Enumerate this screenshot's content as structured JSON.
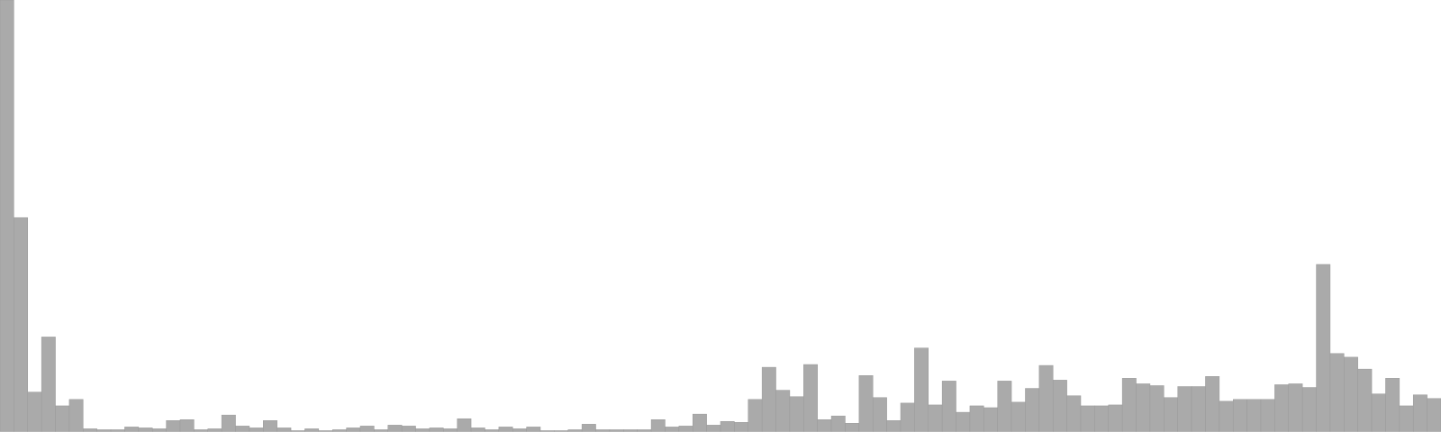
{
  "chart_data": {
    "type": "bar",
    "title": "",
    "xlabel": "",
    "ylabel": "",
    "ylim": [
      0,
      470
    ],
    "grid": false,
    "legend": "none",
    "bar_color": "#aaaaaa",
    "bar_edge_color": "#999999",
    "series": [
      {
        "values": [
          470,
          233,
          43,
          103,
          28,
          35,
          3,
          2,
          2,
          5,
          4,
          3,
          12,
          13,
          2,
          3,
          18,
          6,
          4,
          12,
          4,
          1,
          3,
          1,
          2,
          4,
          6,
          2,
          7,
          6,
          3,
          4,
          3,
          14,
          4,
          2,
          5,
          3,
          5,
          1,
          1,
          2,
          8,
          2,
          2,
          2,
          2,
          13,
          5,
          6,
          19,
          7,
          11,
          10,
          35,
          70,
          45,
          38,
          73,
          13,
          17,
          9,
          61,
          37,
          12,
          31,
          91,
          29,
          55,
          21,
          28,
          26,
          55,
          32,
          47,
          72,
          56,
          39,
          28,
          28,
          29,
          58,
          52,
          50,
          37,
          49,
          49,
          60,
          33,
          35,
          35,
          35,
          51,
          52,
          48,
          182,
          85,
          81,
          68,
          41,
          58,
          28,
          40,
          36
        ]
      }
    ]
  }
}
